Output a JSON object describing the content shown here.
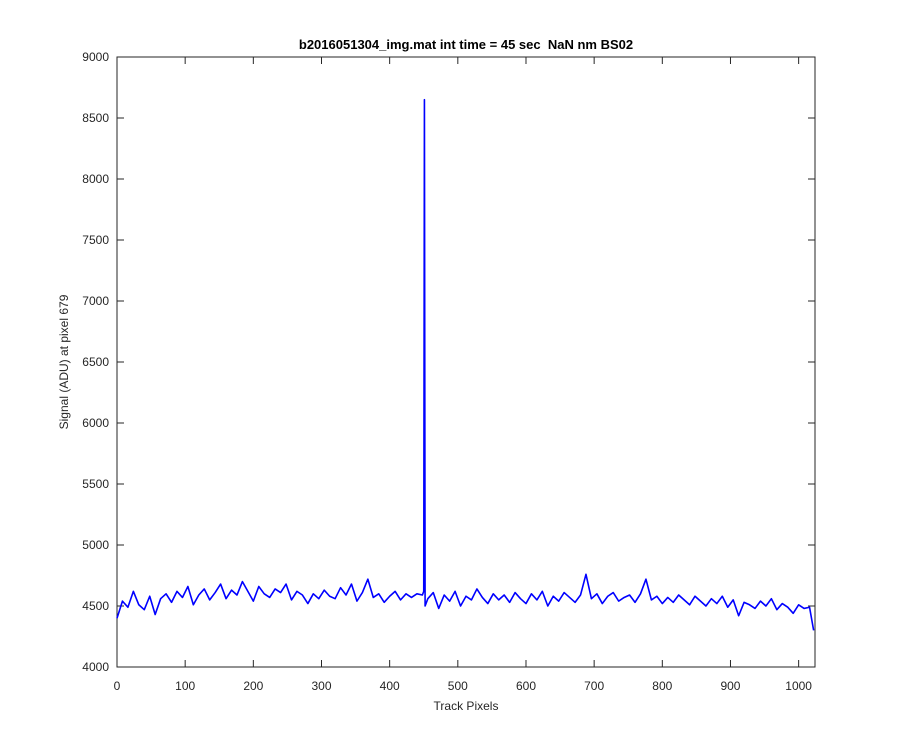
{
  "chart_data": {
    "type": "line",
    "title": "b2016051304_img.mat int time = 45 sec  NaN nm BS02",
    "xlabel": "Track Pixels",
    "ylabel": "Signal (ADU) at pixel 679",
    "color": "#0000ff",
    "xlim": [
      0,
      1024
    ],
    "ylim": [
      4000,
      9000
    ],
    "xticks": [
      0,
      100,
      200,
      300,
      400,
      500,
      600,
      700,
      800,
      900,
      1000
    ],
    "yticks": [
      4000,
      4500,
      5000,
      5500,
      6000,
      6500,
      7000,
      7500,
      8000,
      8500,
      9000
    ],
    "x": [
      0,
      8,
      16,
      24,
      32,
      40,
      48,
      56,
      64,
      72,
      80,
      88,
      96,
      104,
      112,
      120,
      128,
      136,
      144,
      152,
      160,
      168,
      176,
      184,
      192,
      200,
      208,
      216,
      224,
      232,
      240,
      248,
      256,
      264,
      272,
      280,
      288,
      296,
      304,
      312,
      320,
      328,
      336,
      344,
      352,
      360,
      368,
      376,
      384,
      392,
      400,
      408,
      416,
      424,
      432,
      440,
      448,
      450,
      451,
      452,
      456,
      464,
      472,
      480,
      488,
      496,
      504,
      512,
      520,
      528,
      536,
      544,
      552,
      560,
      568,
      576,
      584,
      592,
      600,
      608,
      616,
      624,
      632,
      640,
      648,
      656,
      664,
      672,
      680,
      688,
      696,
      704,
      712,
      720,
      728,
      736,
      744,
      752,
      760,
      768,
      776,
      784,
      792,
      800,
      808,
      816,
      824,
      832,
      840,
      848,
      856,
      864,
      872,
      880,
      888,
      896,
      904,
      912,
      920,
      928,
      936,
      944,
      952,
      960,
      968,
      976,
      984,
      992,
      1000,
      1008,
      1016,
      1022
    ],
    "values": [
      4400,
      4540,
      4490,
      4620,
      4510,
      4470,
      4580,
      4430,
      4560,
      4600,
      4530,
      4620,
      4570,
      4660,
      4510,
      4590,
      4640,
      4550,
      4610,
      4680,
      4560,
      4630,
      4590,
      4700,
      4620,
      4540,
      4660,
      4600,
      4570,
      4640,
      4610,
      4680,
      4550,
      4620,
      4590,
      4520,
      4600,
      4560,
      4630,
      4580,
      4560,
      4650,
      4590,
      4680,
      4540,
      4610,
      4720,
      4570,
      4600,
      4530,
      4580,
      4620,
      4550,
      4600,
      4570,
      4600,
      4590,
      4620,
      8650,
      4500,
      4560,
      4610,
      4480,
      4590,
      4540,
      4620,
      4500,
      4580,
      4550,
      4640,
      4570,
      4520,
      4600,
      4550,
      4590,
      4530,
      4610,
      4560,
      4520,
      4600,
      4550,
      4620,
      4500,
      4580,
      4540,
      4610,
      4570,
      4530,
      4590,
      4760,
      4560,
      4600,
      4520,
      4580,
      4610,
      4540,
      4570,
      4590,
      4530,
      4600,
      4720,
      4550,
      4580,
      4520,
      4570,
      4530,
      4590,
      4550,
      4510,
      4580,
      4540,
      4500,
      4560,
      4520,
      4580,
      4490,
      4550,
      4420,
      4530,
      4510,
      4480,
      4540,
      4500,
      4560,
      4470,
      4520,
      4490,
      4440,
      4510,
      4480,
      4490,
      4300
    ]
  }
}
